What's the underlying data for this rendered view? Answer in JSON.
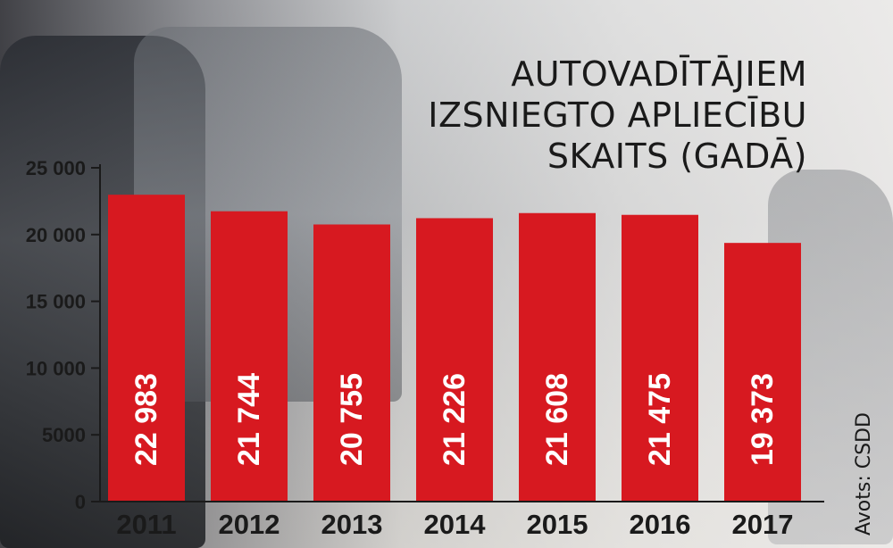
{
  "chart_data": {
    "type": "bar",
    "title_lines": [
      "AUTOVADĪTĀJIEM",
      "IZSNIEGTO APLIECĪBU",
      "SKAITS (GADĀ)"
    ],
    "categories": [
      "2011",
      "2012",
      "2013",
      "2014",
      "2015",
      "2016",
      "2017"
    ],
    "values": [
      22983,
      21744,
      20755,
      21226,
      21608,
      21475,
      19373
    ],
    "value_labels": [
      "22 983",
      "21 744",
      "20 755",
      "21 226",
      "21 608",
      "21 475",
      "19 373"
    ],
    "ylim": [
      0,
      25000
    ],
    "yticks": [
      0,
      5000,
      10000,
      15000,
      20000,
      25000
    ],
    "ytick_labels": [
      "0",
      "5000",
      "10 000",
      "15 000",
      "20 000",
      "25 000"
    ],
    "bar_color": "#d71920",
    "grid": false,
    "source": "Avots: CSDD"
  }
}
